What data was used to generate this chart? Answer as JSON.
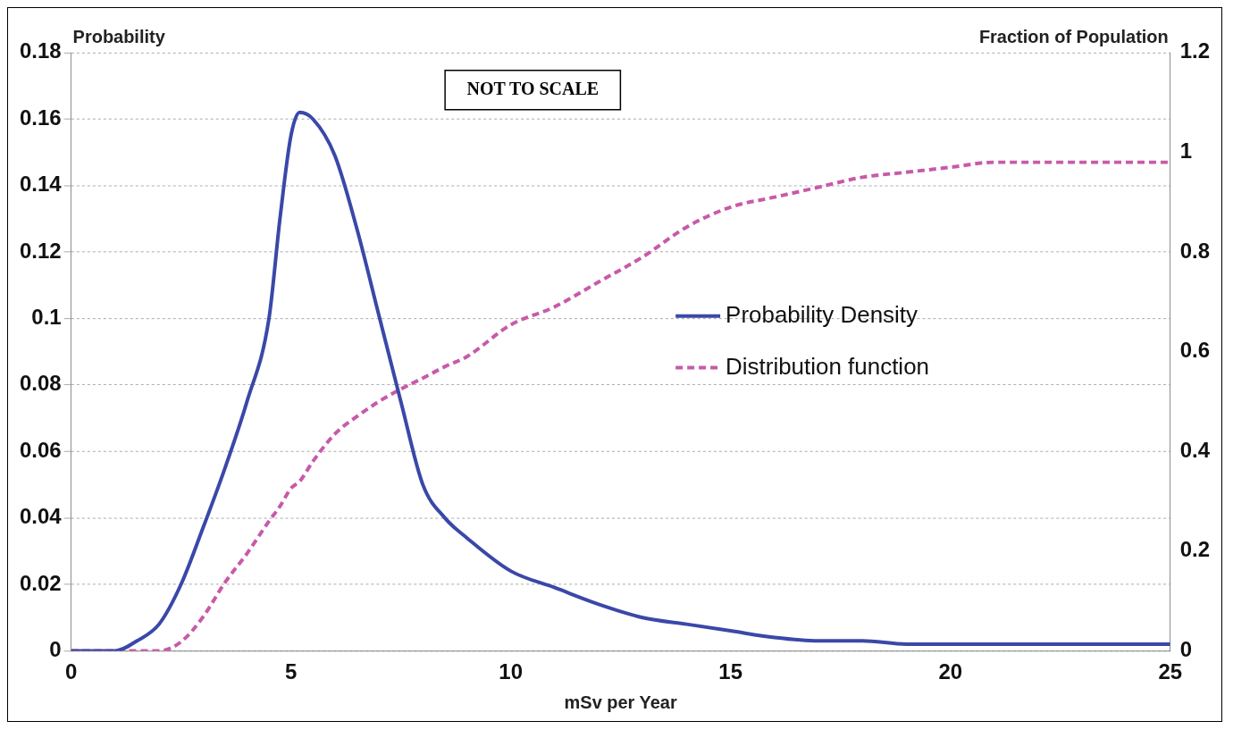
{
  "chart_data": {
    "type": "line",
    "xlabel": "mSv per Year",
    "ylabel": "Probability",
    "y2label": "Fraction of Population",
    "annotations": [
      "NOT TO SCALE"
    ],
    "x": [
      0,
      1,
      1.5,
      2,
      2.5,
      3,
      3.5,
      4,
      4.5,
      4.75,
      5,
      5.2,
      5.5,
      6,
      6.5,
      7,
      7.5,
      8,
      8.5,
      9,
      10,
      11,
      12,
      13,
      14,
      15,
      16,
      17,
      18,
      19,
      20,
      21,
      22,
      23,
      24,
      25
    ],
    "series": [
      {
        "name": "Probability Density",
        "color": "#3a48a8",
        "line_style": "solid",
        "values": [
          0,
          0,
          0.003,
          0.008,
          0.02,
          0.037,
          0.055,
          0.075,
          0.1,
          0.13,
          0.155,
          0.162,
          0.16,
          0.149,
          0.127,
          0.101,
          0.075,
          0.05,
          0.04,
          0.034,
          0.024,
          0.019,
          0.014,
          0.01,
          0.008,
          0.006,
          0.004,
          0.003,
          0.003,
          0.002,
          0.002,
          0.002,
          0.002,
          0.002,
          0.002,
          0.002
        ]
      },
      {
        "name": "Distribution function",
        "color": "#c85aa8",
        "line_style": "dashed",
        "axis": "y2",
        "values": [
          0,
          0,
          0,
          0,
          0.018,
          0.068,
          0.137,
          0.195,
          0.26,
          0.29,
          0.326,
          0.34,
          0.38,
          0.435,
          0.47,
          0.5,
          0.525,
          0.547,
          0.57,
          0.59,
          0.654,
          0.69,
          0.74,
          0.79,
          0.85,
          0.89,
          0.91,
          0.93,
          0.95,
          0.96,
          0.97,
          0.98,
          0.98,
          0.98,
          0.98,
          0.98
        ]
      }
    ],
    "xlim": [
      0,
      25
    ],
    "xticks": [
      0,
      5,
      10,
      15,
      20,
      25
    ],
    "ylim": [
      0,
      0.18
    ],
    "yticks": [
      0,
      0.02,
      0.04,
      0.06,
      0.08,
      0.1,
      0.12,
      0.14,
      0.16,
      0.18
    ],
    "y2lim": [
      0,
      1.2
    ],
    "y2ticks": [
      0,
      0.2,
      0.4,
      0.6,
      0.8,
      1,
      1.2
    ],
    "grid": "y",
    "legend": "right",
    "marker": "none"
  }
}
